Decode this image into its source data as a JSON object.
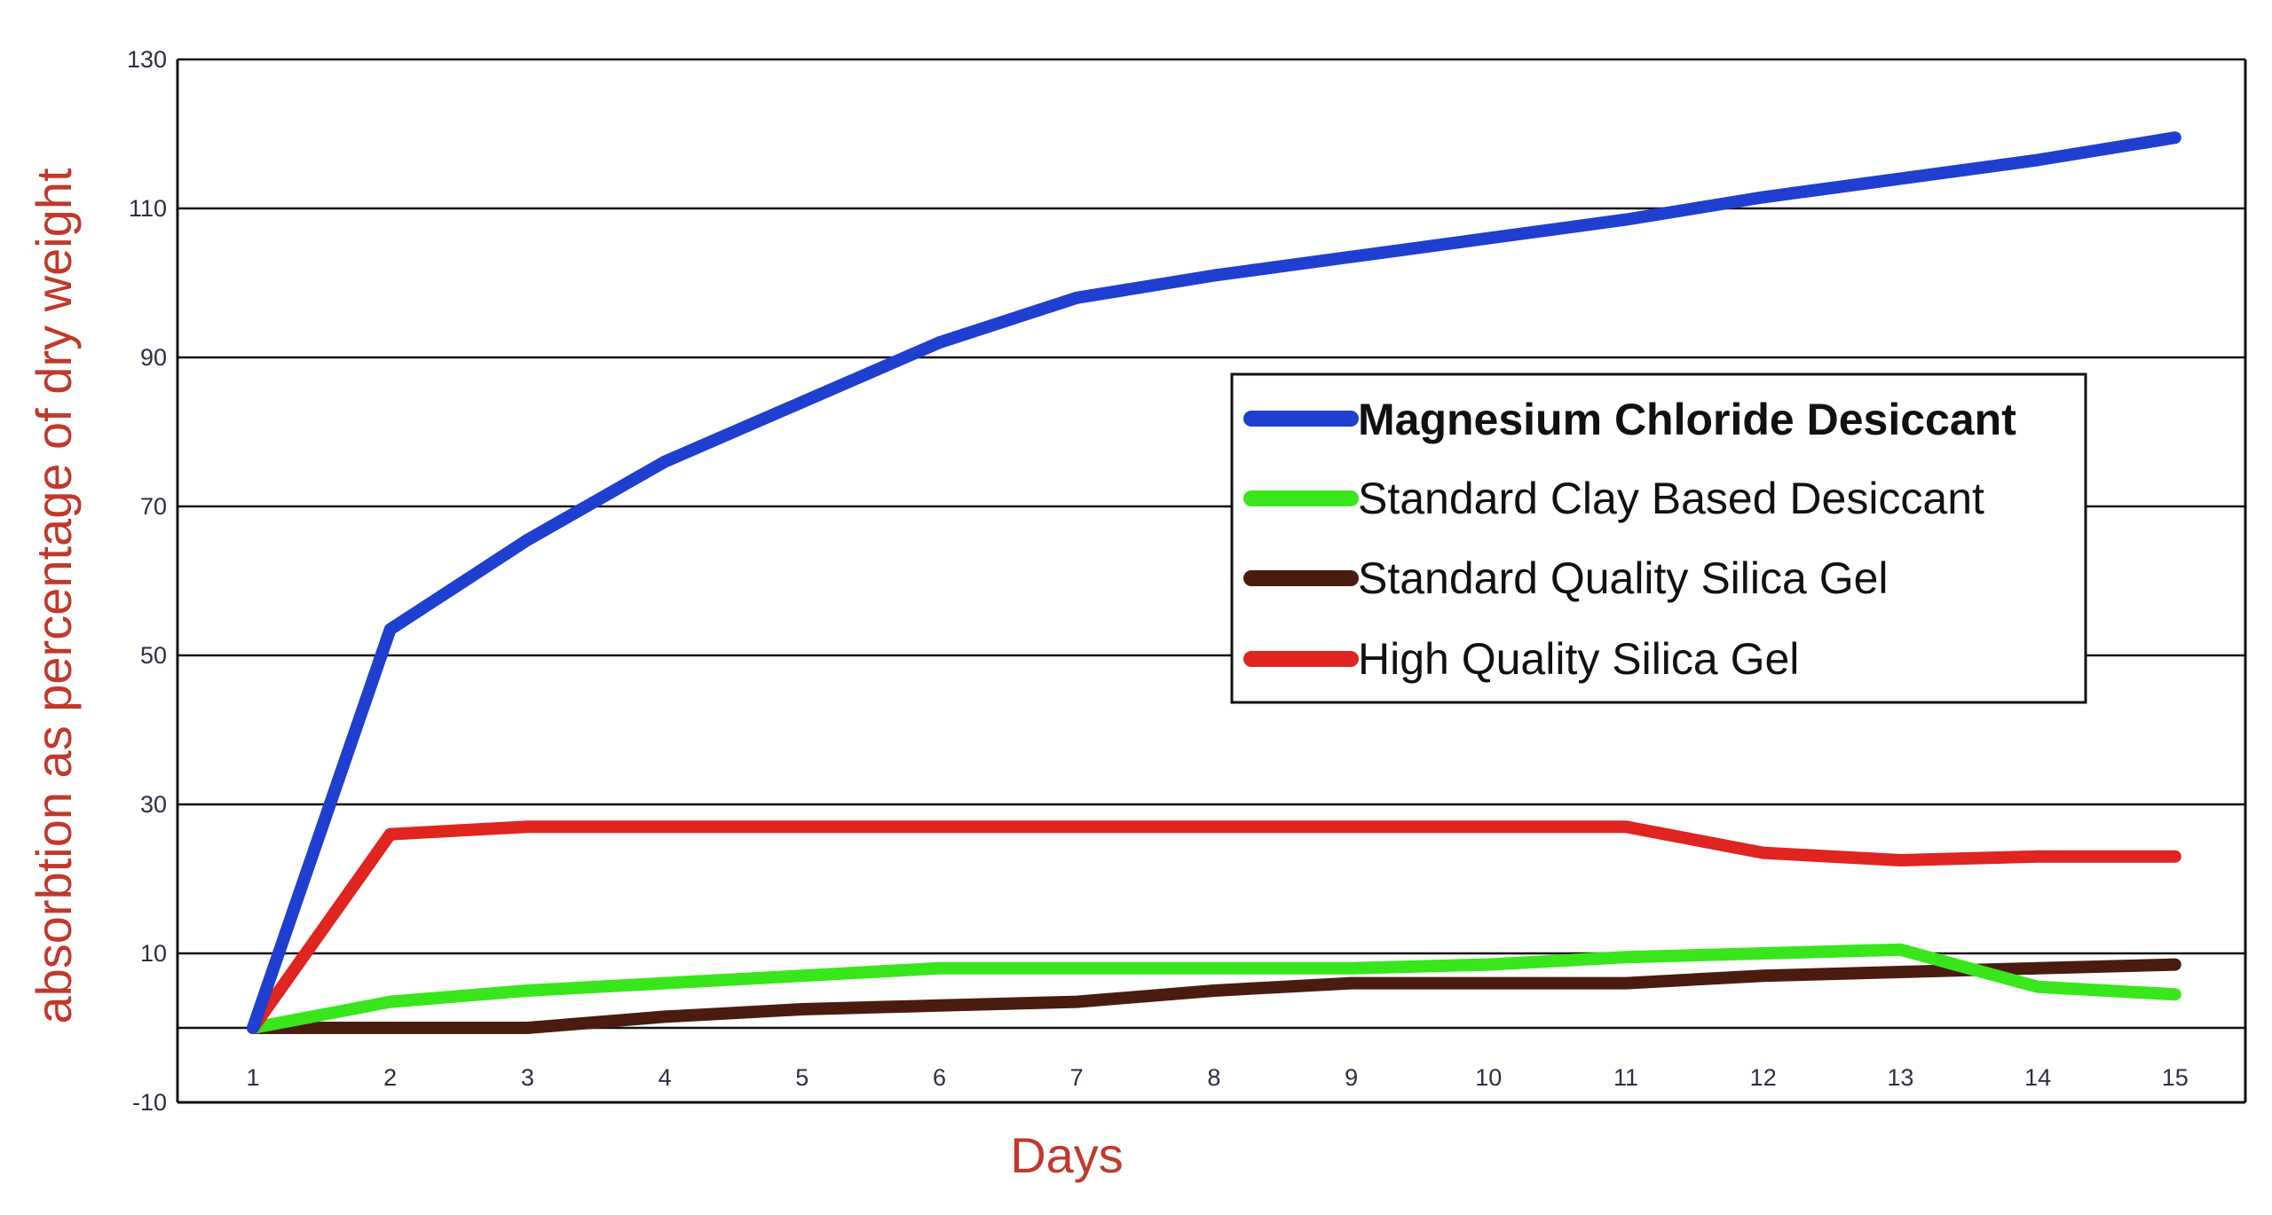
{
  "chart_data": {
    "type": "line",
    "title": "",
    "xlabel": "Days",
    "ylabel": "absorbtion as percentage of  dry weight",
    "x": [
      1,
      2,
      3,
      4,
      5,
      6,
      7,
      8,
      9,
      10,
      11,
      12,
      13,
      14,
      15
    ],
    "xlim": [
      1,
      15
    ],
    "ylim": [
      -10,
      130
    ],
    "yticks": [
      130,
      110,
      90,
      70,
      50,
      30,
      10,
      -10
    ],
    "grid": true,
    "legend_position": "center-right",
    "series": [
      {
        "name": "Magnesium Chloride Desiccant",
        "color": "#1f3fd0",
        "values": [
          0,
          53.5,
          65.5,
          76,
          84,
          92,
          98,
          101,
          103.5,
          106,
          108.5,
          111.5,
          114,
          116.5,
          119.5
        ]
      },
      {
        "name": "Standard Clay Based Desiccant",
        "color": "#39e61c",
        "values": [
          0,
          3.5,
          5,
          6,
          7,
          8,
          8,
          8,
          8,
          8.5,
          9.5,
          10,
          10.5,
          5.5,
          4.5
        ]
      },
      {
        "name": "Standard Quality Silica Gel",
        "color": "#4a1c10",
        "values": [
          0,
          0,
          0,
          1.5,
          2.5,
          3,
          3.5,
          5,
          6,
          6,
          6,
          7,
          7.5,
          8,
          8.5
        ]
      },
      {
        "name": "High Quality Silica Gel",
        "color": "#e0241f",
        "values": [
          0,
          26,
          27,
          27,
          27,
          27,
          27,
          27,
          27,
          27,
          27,
          23.5,
          22.5,
          23,
          23
        ]
      }
    ],
    "colors": {
      "axis_title": "#c0392b",
      "tick_label": "#2d2d47",
      "grid": "#111111"
    }
  }
}
